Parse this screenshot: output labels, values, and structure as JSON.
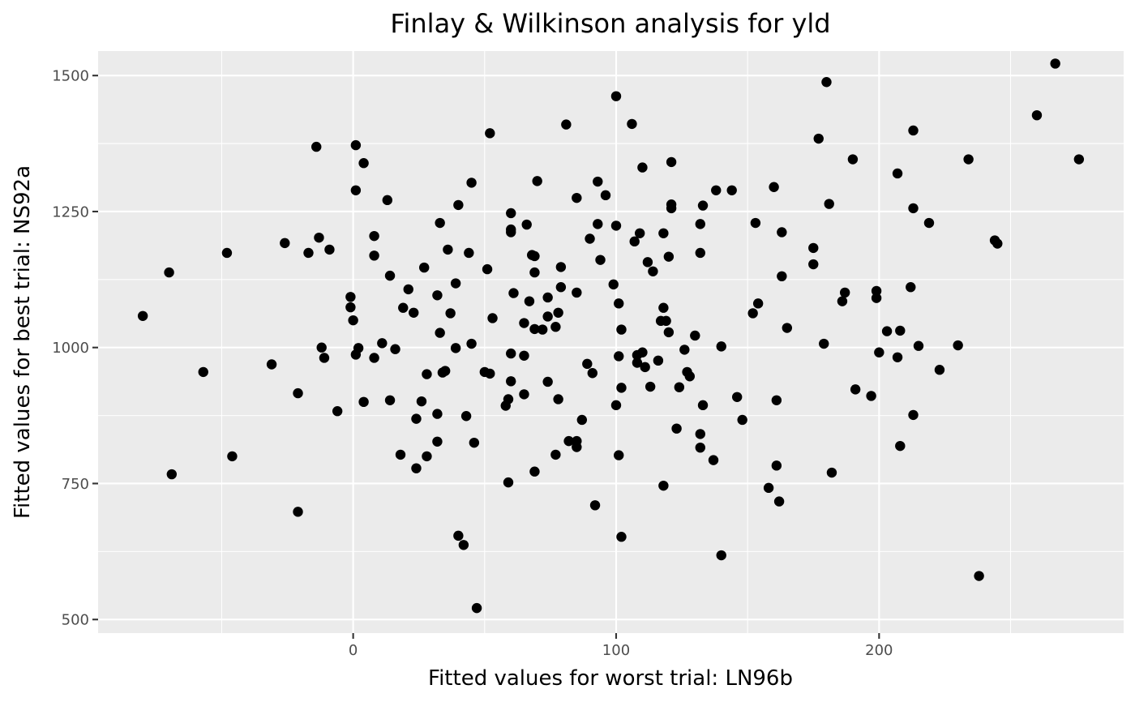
{
  "chart_data": {
    "type": "scatter",
    "title": "Finlay & Wilkinson analysis for yld",
    "xlabel": "Fitted values for worst trial: LN96b",
    "ylabel": "Fitted values for best trial: NS92a",
    "xlim": [
      -97,
      293
    ],
    "ylim": [
      475,
      1545
    ],
    "x_ticks": [
      0,
      100,
      200
    ],
    "y_ticks": [
      500,
      750,
      1000,
      1250,
      1500
    ],
    "grid": true,
    "point_color": "#000000",
    "panel_color": "#ebebeb",
    "points": [
      [
        -80,
        1058
      ],
      [
        -70,
        1138
      ],
      [
        -69,
        767
      ],
      [
        -57,
        955
      ],
      [
        -48,
        1174
      ],
      [
        -46,
        800
      ],
      [
        -31,
        969
      ],
      [
        -26,
        1192
      ],
      [
        -21,
        916
      ],
      [
        -21,
        698
      ],
      [
        -17,
        1174
      ],
      [
        -14,
        1369
      ],
      [
        -13,
        1202
      ],
      [
        -12,
        1000
      ],
      [
        -11,
        981
      ],
      [
        -9,
        1180
      ],
      [
        -6,
        883
      ],
      [
        -1,
        1074
      ],
      [
        -1,
        1093
      ],
      [
        0,
        1050
      ],
      [
        1,
        1289
      ],
      [
        1,
        1372
      ],
      [
        1,
        987
      ],
      [
        2,
        999
      ],
      [
        4,
        900
      ],
      [
        4,
        1339
      ],
      [
        8,
        1205
      ],
      [
        8,
        981
      ],
      [
        8,
        1169
      ],
      [
        11,
        1008
      ],
      [
        13,
        1271
      ],
      [
        14,
        903
      ],
      [
        14,
        1132
      ],
      [
        16,
        997
      ],
      [
        18,
        803
      ],
      [
        19,
        1073
      ],
      [
        21,
        1107
      ],
      [
        23,
        1064
      ],
      [
        24,
        869
      ],
      [
        24,
        778
      ],
      [
        26,
        901
      ],
      [
        27,
        1147
      ],
      [
        28,
        951
      ],
      [
        28,
        800
      ],
      [
        32,
        878
      ],
      [
        32,
        827
      ],
      [
        32,
        1096
      ],
      [
        33,
        1229
      ],
      [
        33,
        1027
      ],
      [
        34,
        954
      ],
      [
        35,
        957
      ],
      [
        36,
        1180
      ],
      [
        37,
        1063
      ],
      [
        39,
        999
      ],
      [
        39,
        1118
      ],
      [
        40,
        1262
      ],
      [
        40,
        654
      ],
      [
        42,
        637
      ],
      [
        43,
        874
      ],
      [
        44,
        1174
      ],
      [
        45,
        1303
      ],
      [
        45,
        1007
      ],
      [
        46,
        825
      ],
      [
        47,
        521
      ],
      [
        50,
        955
      ],
      [
        51,
        1144
      ],
      [
        52,
        952
      ],
      [
        52,
        1394
      ],
      [
        53,
        1054
      ],
      [
        58,
        893
      ],
      [
        59,
        752
      ],
      [
        59,
        905
      ],
      [
        60,
        1217
      ],
      [
        60,
        1247
      ],
      [
        60,
        989
      ],
      [
        60,
        938
      ],
      [
        60,
        1212
      ],
      [
        61,
        1100
      ],
      [
        65,
        914
      ],
      [
        65,
        1045
      ],
      [
        65,
        985
      ],
      [
        66,
        1226
      ],
      [
        67,
        1085
      ],
      [
        68,
        1170
      ],
      [
        69,
        1168
      ],
      [
        69,
        772
      ],
      [
        69,
        1034
      ],
      [
        69,
        1138
      ],
      [
        70,
        1306
      ],
      [
        72,
        1033
      ],
      [
        74,
        1092
      ],
      [
        74,
        1057
      ],
      [
        74,
        937
      ],
      [
        77,
        1038
      ],
      [
        77,
        803
      ],
      [
        78,
        905
      ],
      [
        78,
        1064
      ],
      [
        79,
        1111
      ],
      [
        79,
        1148
      ],
      [
        81,
        1410
      ],
      [
        82,
        828
      ],
      [
        85,
        828
      ],
      [
        85,
        817
      ],
      [
        85,
        1275
      ],
      [
        85,
        1101
      ],
      [
        87,
        867
      ],
      [
        89,
        970
      ],
      [
        90,
        1200
      ],
      [
        91,
        953
      ],
      [
        92,
        710
      ],
      [
        93,
        1227
      ],
      [
        93,
        1305
      ],
      [
        94,
        1161
      ],
      [
        96,
        1280
      ],
      [
        99,
        1116
      ],
      [
        100,
        1462
      ],
      [
        100,
        894
      ],
      [
        100,
        1224
      ],
      [
        101,
        984
      ],
      [
        101,
        802
      ],
      [
        101,
        1081
      ],
      [
        102,
        1033
      ],
      [
        102,
        926
      ],
      [
        102,
        652
      ],
      [
        106,
        1411
      ],
      [
        107,
        1195
      ],
      [
        108,
        986
      ],
      [
        108,
        972
      ],
      [
        109,
        1210
      ],
      [
        110,
        1331
      ],
      [
        110,
        991
      ],
      [
        111,
        964
      ],
      [
        112,
        1157
      ],
      [
        113,
        928
      ],
      [
        114,
        1140
      ],
      [
        116,
        976
      ],
      [
        117,
        1049
      ],
      [
        118,
        1073
      ],
      [
        118,
        1210
      ],
      [
        118,
        746
      ],
      [
        119,
        1049
      ],
      [
        120,
        1028
      ],
      [
        120,
        1167
      ],
      [
        121,
        1256
      ],
      [
        121,
        1263
      ],
      [
        121,
        1341
      ],
      [
        123,
        851
      ],
      [
        124,
        927
      ],
      [
        126,
        996
      ],
      [
        127,
        955
      ],
      [
        128,
        947
      ],
      [
        130,
        1022
      ],
      [
        132,
        816
      ],
      [
        132,
        841
      ],
      [
        132,
        1174
      ],
      [
        132,
        1227
      ],
      [
        133,
        894
      ],
      [
        133,
        1261
      ],
      [
        137,
        793
      ],
      [
        138,
        1289
      ],
      [
        140,
        1002
      ],
      [
        140,
        618
      ],
      [
        144,
        1289
      ],
      [
        146,
        909
      ],
      [
        148,
        867
      ],
      [
        152,
        1063
      ],
      [
        153,
        1229
      ],
      [
        154,
        1081
      ],
      [
        158,
        742
      ],
      [
        160,
        1295
      ],
      [
        161,
        903
      ],
      [
        161,
        783
      ],
      [
        162,
        717
      ],
      [
        163,
        1212
      ],
      [
        163,
        1131
      ],
      [
        165,
        1036
      ],
      [
        175,
        1153
      ],
      [
        175,
        1183
      ],
      [
        177,
        1384
      ],
      [
        179,
        1007
      ],
      [
        180,
        1488
      ],
      [
        181,
        1264
      ],
      [
        182,
        770
      ],
      [
        186,
        1085
      ],
      [
        187,
        1101
      ],
      [
        190,
        1346
      ],
      [
        191,
        923
      ],
      [
        197,
        911
      ],
      [
        199,
        1104
      ],
      [
        199,
        1091
      ],
      [
        200,
        991
      ],
      [
        203,
        1030
      ],
      [
        207,
        1320
      ],
      [
        207,
        982
      ],
      [
        208,
        1031
      ],
      [
        208,
        819
      ],
      [
        212,
        1111
      ],
      [
        213,
        1399
      ],
      [
        213,
        1256
      ],
      [
        213,
        876
      ],
      [
        215,
        1003
      ],
      [
        219,
        1229
      ],
      [
        223,
        959
      ],
      [
        230,
        1004
      ],
      [
        234,
        1346
      ],
      [
        238,
        580
      ],
      [
        244,
        1197
      ],
      [
        245,
        1191
      ],
      [
        260,
        1427
      ],
      [
        267,
        1522
      ],
      [
        276,
        1346
      ]
    ]
  }
}
